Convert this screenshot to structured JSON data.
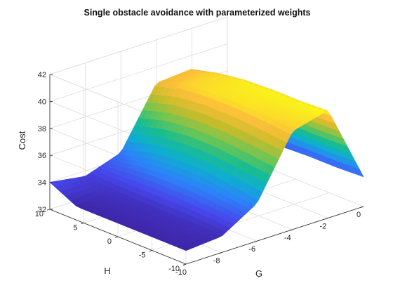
{
  "chart_data": {
    "type": "surface",
    "title": "Single obstacle avoidance with parameterized weights",
    "xlabel": "G",
    "ylabel": "H",
    "zlabel": "Cost",
    "xlim": [
      -10,
      0
    ],
    "ylim": [
      -10,
      10
    ],
    "zlim": [
      32,
      42
    ],
    "xticks": [
      -10,
      -8,
      -6,
      -4,
      -2,
      0
    ],
    "yticks": [
      -10,
      -5,
      0,
      5,
      10
    ],
    "zticks": [
      32,
      34,
      36,
      38,
      40,
      42
    ],
    "grid": true,
    "colormap": "parula",
    "g": [
      -10,
      -8,
      -6,
      -4,
      -2,
      0
    ],
    "h": [
      -10,
      -6,
      -2,
      2,
      6,
      10
    ],
    "cost": [
      [
        33.0,
        33.2,
        34.8,
        39.3,
        40.0,
        34.2
      ],
      [
        33.0,
        33.3,
        35.1,
        39.5,
        39.9,
        34.1
      ],
      [
        33.0,
        33.3,
        35.4,
        39.6,
        39.9,
        34.1
      ],
      [
        33.0,
        33.3,
        35.4,
        39.6,
        39.8,
        34.0
      ],
      [
        33.0,
        33.4,
        35.1,
        39.4,
        39.5,
        34.0
      ],
      [
        34.0,
        33.6,
        34.5,
        38.8,
        39.0,
        34.2
      ]
    ],
    "colorscale": [
      "#3e26a8",
      "#4746eb",
      "#2c83f9",
      "#0eaed1",
      "#18bd8f",
      "#6fc653",
      "#c9bc2a",
      "#fdc03a",
      "#f9fb15"
    ]
  }
}
